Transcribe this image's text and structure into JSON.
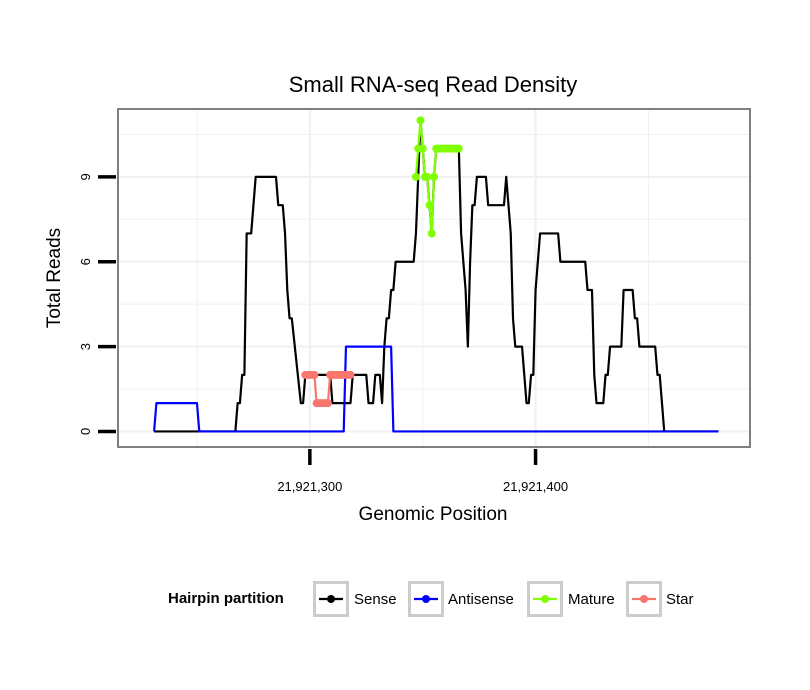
{
  "chart_data": {
    "type": "line",
    "title": "Small RNA-seq Read Density",
    "xlabel": "Genomic Position",
    "ylabel": "Total Reads",
    "xlim": [
      21921215,
      21921495
    ],
    "ylim": [
      -0.55,
      11.4
    ],
    "x_ticks": [
      21921300,
      21921400
    ],
    "x_tick_labels": [
      "21,921,300",
      "21,921,400"
    ],
    "y_ticks": [
      0,
      3,
      6,
      9
    ],
    "y_tick_labels": [
      "0",
      "3",
      "6",
      "9"
    ],
    "legend": {
      "title": "Hairpin partition",
      "position": "bottom",
      "entries": [
        "Sense",
        "Antisense",
        "Mature",
        "Star"
      ]
    },
    "series": [
      {
        "name": "Sense",
        "color": "#000000",
        "style": "line",
        "points": [
          [
            21921231,
            0
          ],
          [
            21921267,
            0
          ],
          [
            21921268,
            1
          ],
          [
            21921269,
            1
          ],
          [
            21921270,
            2
          ],
          [
            21921271,
            2
          ],
          [
            21921272,
            7
          ],
          [
            21921274,
            7
          ],
          [
            21921276,
            9
          ],
          [
            21921285,
            9
          ],
          [
            21921286,
            8
          ],
          [
            21921288,
            8
          ],
          [
            21921289,
            7
          ],
          [
            21921290,
            5
          ],
          [
            21921291,
            4
          ],
          [
            21921292,
            4
          ],
          [
            21921296,
            1
          ],
          [
            21921297,
            1
          ],
          [
            21921298,
            2
          ],
          [
            21921309,
            2
          ],
          [
            21921310,
            1
          ],
          [
            21921318,
            1
          ],
          [
            21921319,
            2
          ],
          [
            21921325,
            2
          ],
          [
            21921326,
            1
          ],
          [
            21921328,
            1
          ],
          [
            21921329,
            2
          ],
          [
            21921331,
            2
          ],
          [
            21921332,
            1
          ],
          [
            21921333,
            3
          ],
          [
            21921334,
            4
          ],
          [
            21921335,
            4
          ],
          [
            21921336,
            5
          ],
          [
            21921337,
            5
          ],
          [
            21921338,
            6
          ],
          [
            21921346,
            6
          ],
          [
            21921347,
            7
          ],
          [
            21921348,
            9
          ],
          [
            21921349,
            11
          ],
          [
            21921350,
            10
          ],
          [
            21921351,
            9
          ],
          [
            21921352,
            9
          ],
          [
            21921353,
            8
          ],
          [
            21921354,
            7
          ],
          [
            21921355,
            9
          ],
          [
            21921356,
            10
          ],
          [
            21921366,
            10
          ],
          [
            21921367,
            7
          ],
          [
            21921368,
            6
          ],
          [
            21921369,
            5
          ],
          [
            21921370,
            3
          ],
          [
            21921371,
            6
          ],
          [
            21921372,
            8
          ],
          [
            21921373,
            8
          ],
          [
            21921374,
            9
          ],
          [
            21921378,
            9
          ],
          [
            21921379,
            8
          ],
          [
            21921386,
            8
          ],
          [
            21921387,
            9
          ],
          [
            21921388,
            8
          ],
          [
            21921389,
            7
          ],
          [
            21921390,
            4
          ],
          [
            21921391,
            3
          ],
          [
            21921394,
            3
          ],
          [
            21921395,
            2
          ],
          [
            21921396,
            1
          ],
          [
            21921397,
            1
          ],
          [
            21921398,
            2
          ],
          [
            21921399,
            2
          ],
          [
            21921400,
            5
          ],
          [
            21921402,
            7
          ],
          [
            21921410,
            7
          ],
          [
            21921411,
            6
          ],
          [
            21921422,
            6
          ],
          [
            21921423,
            5
          ],
          [
            21921425,
            5
          ],
          [
            21921426,
            2
          ],
          [
            21921427,
            1
          ],
          [
            21921430,
            1
          ],
          [
            21921431,
            2
          ],
          [
            21921432,
            2
          ],
          [
            21921433,
            3
          ],
          [
            21921438,
            3
          ],
          [
            21921439,
            5
          ],
          [
            21921443,
            5
          ],
          [
            21921444,
            4
          ],
          [
            21921445,
            4
          ],
          [
            21921446,
            3
          ],
          [
            21921453,
            3
          ],
          [
            21921454,
            2
          ],
          [
            21921455,
            2
          ],
          [
            21921456,
            1
          ],
          [
            21921457,
            0
          ],
          [
            21921481,
            0
          ]
        ]
      },
      {
        "name": "Antisense",
        "color": "#0000ff",
        "style": "line",
        "points": [
          [
            21921231,
            0
          ],
          [
            21921232,
            1
          ],
          [
            21921250,
            1
          ],
          [
            21921251,
            0
          ],
          [
            21921315,
            0
          ],
          [
            21921316,
            3
          ],
          [
            21921336,
            3
          ],
          [
            21921337,
            0
          ],
          [
            21921481,
            0
          ]
        ]
      },
      {
        "name": "Mature",
        "color": "#7fff00",
        "style": "line+points",
        "points": [
          [
            21921347,
            9
          ],
          [
            21921348,
            10
          ],
          [
            21921349,
            11
          ],
          [
            21921350,
            10
          ],
          [
            21921351,
            9
          ],
          [
            21921352,
            9
          ],
          [
            21921353,
            8
          ],
          [
            21921354,
            7
          ],
          [
            21921355,
            9
          ],
          [
            21921356,
            10
          ],
          [
            21921357,
            10
          ],
          [
            21921358,
            10
          ],
          [
            21921359,
            10
          ],
          [
            21921360,
            10
          ],
          [
            21921361,
            10
          ],
          [
            21921362,
            10
          ],
          [
            21921363,
            10
          ],
          [
            21921364,
            10
          ],
          [
            21921365,
            10
          ],
          [
            21921366,
            10
          ]
        ]
      },
      {
        "name": "Star",
        "color": "#f8766d",
        "style": "line+points",
        "points": [
          [
            21921298,
            2
          ],
          [
            21921299,
            2
          ],
          [
            21921300,
            2
          ],
          [
            21921301,
            2
          ],
          [
            21921302,
            2
          ],
          [
            21921303,
            1
          ],
          [
            21921304,
            1
          ],
          [
            21921305,
            1
          ],
          [
            21921306,
            1
          ],
          [
            21921307,
            1
          ],
          [
            21921308,
            1
          ],
          [
            21921309,
            2
          ],
          [
            21921310,
            2
          ],
          [
            21921311,
            2
          ],
          [
            21921312,
            2
          ],
          [
            21921313,
            2
          ],
          [
            21921314,
            2
          ],
          [
            21921315,
            2
          ],
          [
            21921316,
            2
          ],
          [
            21921317,
            2
          ],
          [
            21921318,
            2
          ]
        ]
      }
    ]
  }
}
